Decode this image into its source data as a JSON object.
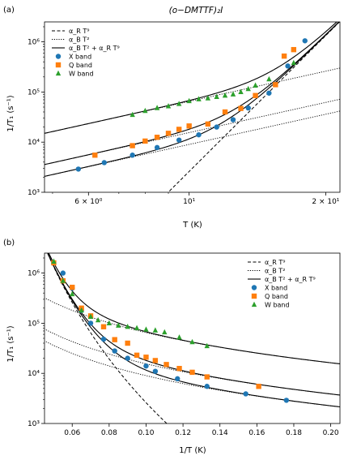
{
  "chart_data": [
    {
      "type": "scatter",
      "panel_label": "(a)",
      "title": "(o−DMTTF)₂I",
      "xlabel": "T (K)",
      "ylabel": "1/T₁ (s⁻¹)",
      "x_scale": "log",
      "y_scale": "log",
      "xlim": [
        4.8,
        21.5
      ],
      "ylim": [
        1000,
        2500000
      ],
      "x_tick_labels": [
        {
          "value": 6,
          "label": "6 × 10⁰"
        },
        {
          "value": 10,
          "label": "10¹"
        },
        {
          "value": 20,
          "label": "2 × 10¹"
        }
      ],
      "y_tick_labels": [
        {
          "value": 1000,
          "label": "10³"
        },
        {
          "value": 10000,
          "label": "10⁴"
        },
        {
          "value": 100000,
          "label": "10⁵"
        },
        {
          "value": 1000000,
          "label": "10⁶"
        }
      ],
      "legend_position": "top-left",
      "legend": [
        {
          "label": "α_R T⁹",
          "style": "dashed"
        },
        {
          "label": "α_B T²",
          "style": "dotted"
        },
        {
          "label": "α_B T² + α_R T⁹",
          "style": "solid"
        },
        {
          "label": "X band",
          "marker": "circle",
          "color": "#1f77b4"
        },
        {
          "label": "Q band",
          "marker": "square",
          "color": "#ff7f0e"
        },
        {
          "label": "W band",
          "marker": "triangle",
          "color": "#2ca02c"
        }
      ],
      "series": [
        {
          "name": "X band",
          "marker": "circle",
          "color": "#1f77b4",
          "x": [
            5.7,
            6.5,
            7.5,
            8.5,
            9.5,
            10.5,
            11.5,
            12.5,
            13.5,
            15.0,
            16.5,
            18.0
          ],
          "y": [
            2900,
            3900,
            5500,
            7800,
            11000,
            14000,
            20000,
            28000,
            48000,
            95000,
            330000,
            1050000
          ]
        },
        {
          "name": "Q band",
          "marker": "square",
          "color": "#ff7f0e",
          "x": [
            6.2,
            7.5,
            8.0,
            8.5,
            9.0,
            9.5,
            10.0,
            11.0,
            12.0,
            13.0,
            14.0,
            15.5,
            16.2,
            17.0
          ],
          "y": [
            5500,
            8500,
            10500,
            12500,
            15000,
            18000,
            21000,
            23000,
            40000,
            47000,
            85000,
            140000,
            520000,
            700000
          ]
        },
        {
          "name": "W band",
          "marker": "triangle",
          "color": "#2ca02c",
          "x": [
            7.5,
            8.0,
            8.5,
            9.0,
            9.5,
            10.0,
            10.5,
            11.0,
            11.5,
            12.0,
            12.5,
            13.0,
            13.5,
            14.0,
            15.0,
            17.0
          ],
          "y": [
            35000,
            42000,
            48000,
            52000,
            58000,
            66000,
            72000,
            75000,
            80000,
            85000,
            90000,
            100000,
            115000,
            135000,
            180000,
            380000
          ]
        }
      ],
      "fit_lines": [
        {
          "kind": "dashed",
          "alpha_R": 2.6e-06
        },
        {
          "kind": "dotted",
          "alpha_B": 90
        },
        {
          "kind": "dotted",
          "alpha_B": 155
        },
        {
          "kind": "dotted",
          "alpha_B": 650
        }
      ]
    },
    {
      "type": "scatter",
      "panel_label": "(b)",
      "xlabel": "1/T (K)",
      "ylabel": "1/T₁ (s⁻¹)",
      "x_scale": "linear",
      "y_scale": "log",
      "xlim": [
        0.045,
        0.205
      ],
      "ylim": [
        1000,
        2500000
      ],
      "x_tick_labels": [
        {
          "value": 0.06,
          "label": "0.06"
        },
        {
          "value": 0.08,
          "label": "0.08"
        },
        {
          "value": 0.1,
          "label": "0.10"
        },
        {
          "value": 0.12,
          "label": "0.12"
        },
        {
          "value": 0.14,
          "label": "0.14"
        },
        {
          "value": 0.16,
          "label": "0.16"
        },
        {
          "value": 0.18,
          "label": "0.18"
        },
        {
          "value": 0.2,
          "label": "0.20"
        }
      ],
      "y_tick_labels": [
        {
          "value": 1000,
          "label": "10³"
        },
        {
          "value": 10000,
          "label": "10⁴"
        },
        {
          "value": 100000,
          "label": "10⁵"
        },
        {
          "value": 1000000,
          "label": "10⁶"
        }
      ],
      "legend_position": "top-right",
      "legend": [
        {
          "label": "α_R T⁹",
          "style": "dashed"
        },
        {
          "label": "α_B T²",
          "style": "dotted"
        },
        {
          "label": "α_B T² + α_R T⁹",
          "style": "solid"
        },
        {
          "label": "X band",
          "marker": "circle",
          "color": "#1f77b4"
        },
        {
          "label": "Q band",
          "marker": "square",
          "color": "#ff7f0e"
        },
        {
          "label": "W band",
          "marker": "triangle",
          "color": "#2ca02c"
        }
      ],
      "series": [
        {
          "name": "X band",
          "marker": "circle",
          "color": "#1f77b4",
          "x": [
            0.05,
            0.055,
            0.06,
            0.065,
            0.07,
            0.077,
            0.083,
            0.09,
            0.1,
            0.105,
            0.117,
            0.133,
            0.154,
            0.176
          ],
          "y": [
            1600000,
            1000000,
            500000,
            180000,
            100000,
            48000,
            28000,
            20000,
            14000,
            11000,
            7800,
            5500,
            3900,
            2900
          ]
        },
        {
          "name": "Q band",
          "marker": "square",
          "color": "#ff7f0e",
          "x": [
            0.05,
            0.055,
            0.06,
            0.065,
            0.07,
            0.077,
            0.083,
            0.09,
            0.095,
            0.1,
            0.105,
            0.111,
            0.118,
            0.125,
            0.133,
            0.161
          ],
          "y": [
            1600000,
            700000,
            520000,
            200000,
            140000,
            85000,
            47000,
            40000,
            23000,
            21000,
            18000,
            15000,
            12500,
            10500,
            8500,
            5500
          ]
        },
        {
          "name": "W band",
          "marker": "triangle",
          "color": "#2ca02c",
          "x": [
            0.05,
            0.055,
            0.06,
            0.065,
            0.07,
            0.074,
            0.08,
            0.085,
            0.09,
            0.095,
            0.1,
            0.105,
            0.11,
            0.118,
            0.125,
            0.133
          ],
          "y": [
            1700000,
            700000,
            380000,
            180000,
            135000,
            115000,
            100000,
            90000,
            85000,
            80000,
            75000,
            72000,
            66000,
            52000,
            42000,
            35000
          ]
        }
      ],
      "fit_lines": [
        {
          "kind": "dashed",
          "alpha_R": 2.6e-06
        },
        {
          "kind": "dotted",
          "alpha_B": 90
        },
        {
          "kind": "dotted",
          "alpha_B": 155
        },
        {
          "kind": "dotted",
          "alpha_B": 650
        }
      ]
    }
  ]
}
